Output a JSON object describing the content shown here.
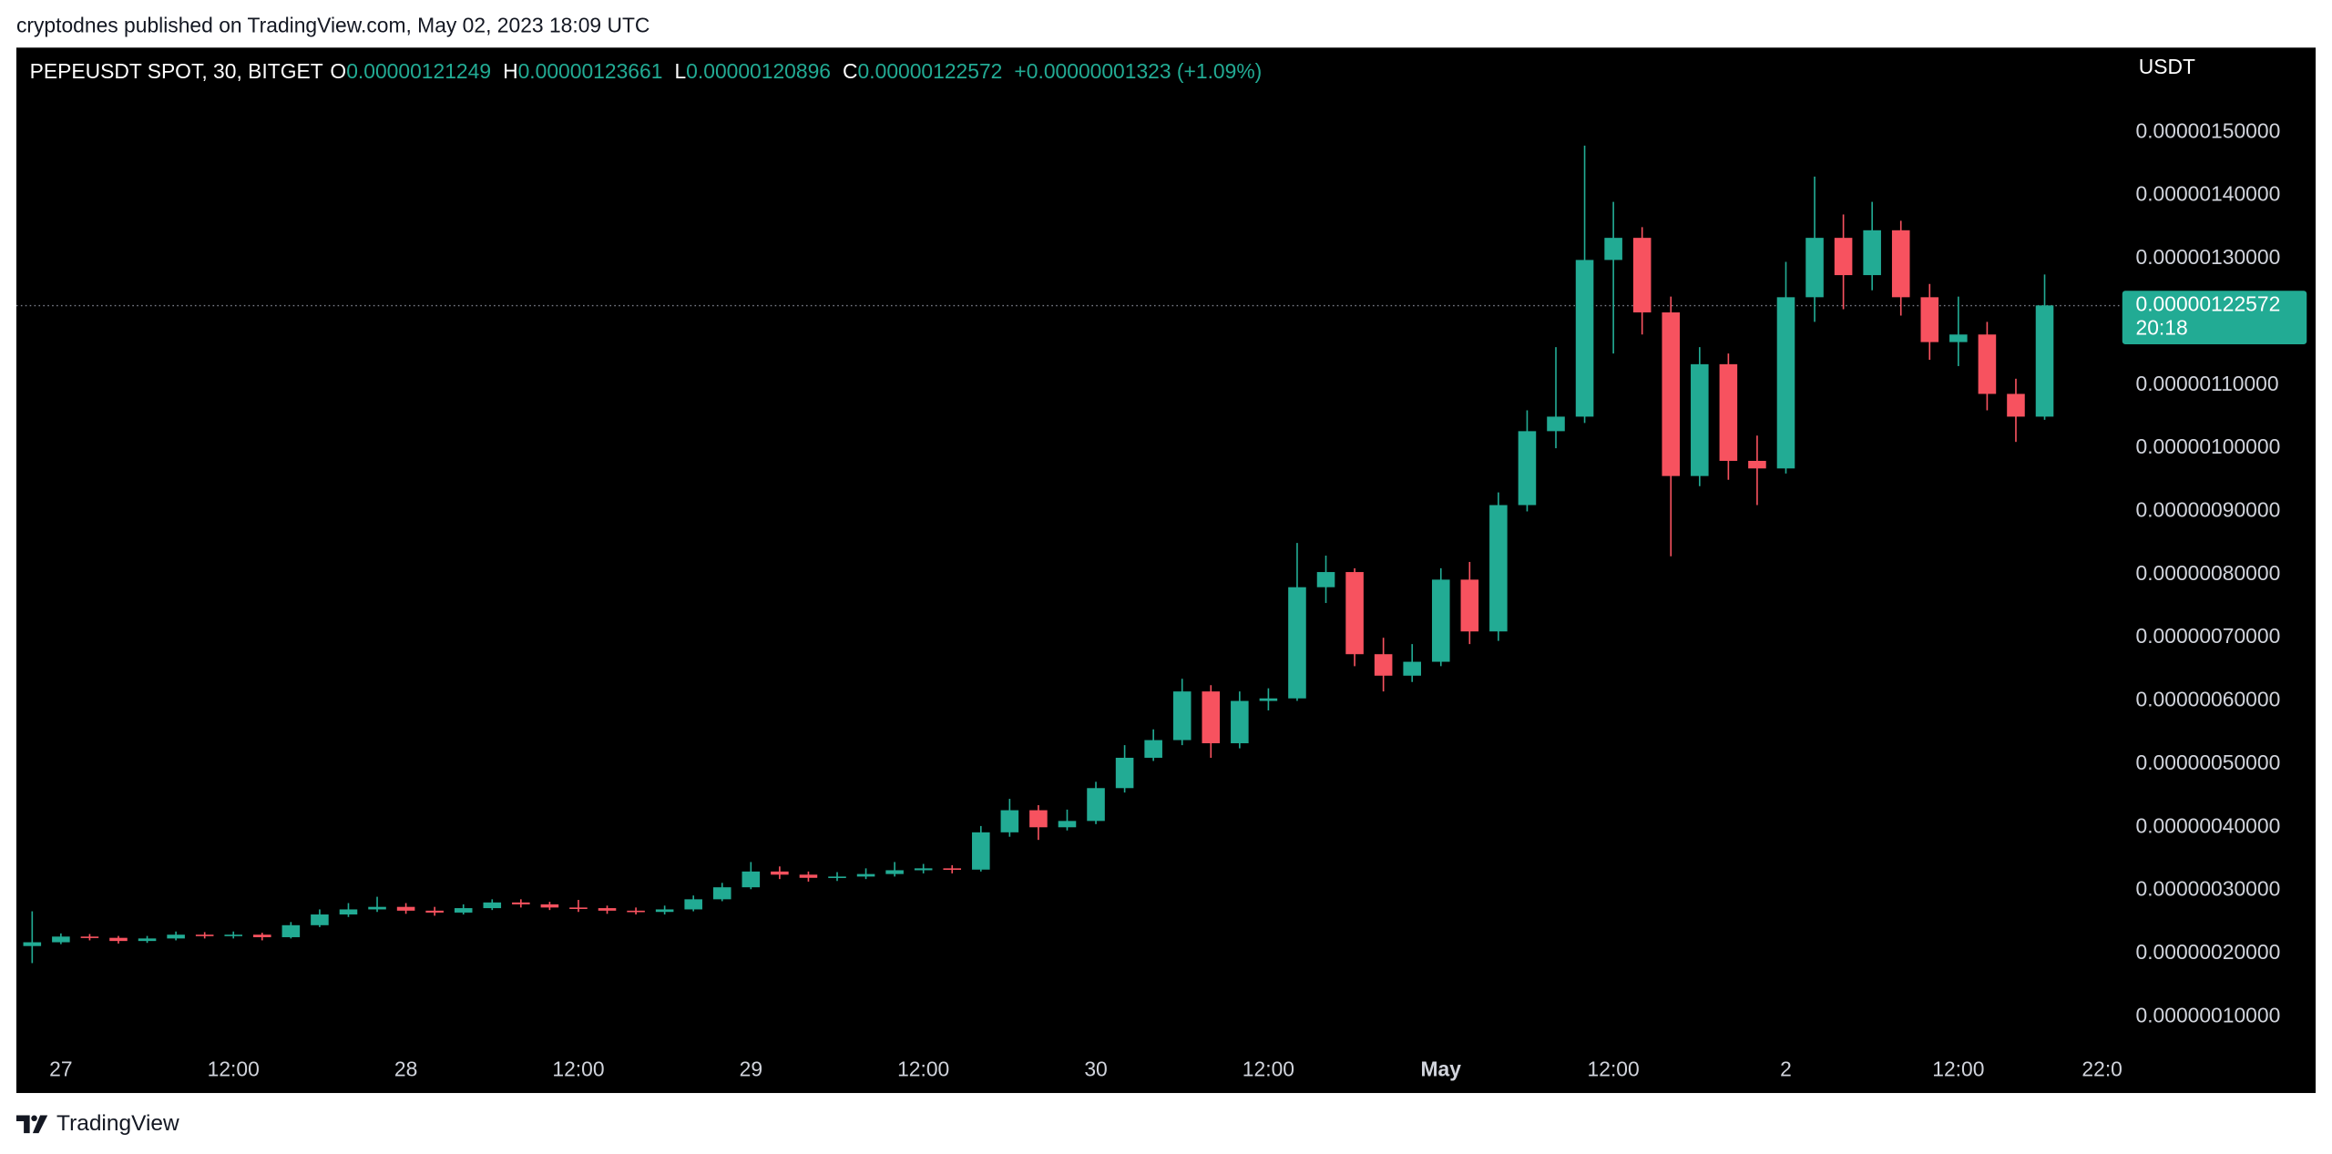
{
  "chart_data": {
    "type": "candlestick",
    "attribution": "cryptodnes published on TradingView.com, May 02, 2023 18:09 UTC",
    "brand": "TradingView",
    "symbol": "PEPEUSDT SPOT, 30, BITGET",
    "ohlc_header": [
      {
        "key": "O",
        "value": "0.00000121249"
      },
      {
        "key": "H",
        "value": "0.00000123661"
      },
      {
        "key": "L",
        "value": "0.00000120896"
      },
      {
        "key": "C",
        "value": "0.00000122572"
      }
    ],
    "change": "+0.00000001323 (+1.09%)",
    "currency": "USDT",
    "last_price": {
      "value": 1.22572e-06,
      "label": "0.00000122572"
    },
    "countdown": "20:18",
    "up_color": "#22ab94",
    "down_color": "#f7525f",
    "xlim": [
      -3.1,
      143.3
    ],
    "xticks": [
      {
        "value": 0,
        "label": "27"
      },
      {
        "value": 12,
        "label": "12:00"
      },
      {
        "value": 24,
        "label": "28"
      },
      {
        "value": 36,
        "label": "12:00"
      },
      {
        "value": 48,
        "label": "29"
      },
      {
        "value": 60,
        "label": "12:00"
      },
      {
        "value": 72,
        "label": "30"
      },
      {
        "value": 84,
        "label": "12:00"
      },
      {
        "value": 96,
        "label": "May"
      },
      {
        "value": 108,
        "label": "12:00"
      },
      {
        "value": 120,
        "label": "2"
      },
      {
        "value": 132,
        "label": "12:00"
      },
      {
        "value": 142,
        "label": "22:0"
      }
    ],
    "ylim": [
      5e-08,
      1.63e-06
    ],
    "yticks": [
      {
        "value": 1e-07,
        "label": "0.00000010000"
      },
      {
        "value": 2e-07,
        "label": "0.00000020000"
      },
      {
        "value": 3e-07,
        "label": "0.00000030000"
      },
      {
        "value": 4e-07,
        "label": "0.00000040000"
      },
      {
        "value": 5e-07,
        "label": "0.00000050000"
      },
      {
        "value": 6e-07,
        "label": "0.00000060000"
      },
      {
        "value": 7e-07,
        "label": "0.00000070000"
      },
      {
        "value": 8e-07,
        "label": "0.00000080000"
      },
      {
        "value": 9e-07,
        "label": "0.00000090000"
      },
      {
        "value": 1e-06,
        "label": "0.00000100000"
      },
      {
        "value": 1.1e-06,
        "label": "0.00000110000"
      },
      {
        "value": 1.3e-06,
        "label": "0.00000130000"
      },
      {
        "value": 1.4e-06,
        "label": "0.00000140000"
      },
      {
        "value": 1.5e-06,
        "label": "0.00000150000"
      }
    ],
    "x": [
      -2,
      0,
      2,
      4,
      6,
      8,
      10,
      12,
      14,
      16,
      18,
      20,
      22,
      24,
      26,
      28,
      30,
      32,
      34,
      36,
      38,
      40,
      42,
      44,
      46,
      48,
      50,
      52,
      54,
      56,
      58,
      60,
      62,
      64,
      66,
      68,
      70,
      72,
      74,
      76,
      78,
      80,
      82,
      84,
      86,
      88,
      90,
      92,
      94,
      96,
      98,
      100,
      102,
      104,
      106,
      108,
      110,
      112,
      114,
      116,
      118,
      120,
      122,
      124,
      126,
      128,
      130,
      132,
      134,
      136,
      138
    ],
    "open": [
      2.12e-07,
      2.18e-07,
      2.27e-07,
      2.25e-07,
      2.2e-07,
      2.24e-07,
      2.3e-07,
      2.28e-07,
      2.3e-07,
      2.26e-07,
      2.45e-07,
      2.62e-07,
      2.7e-07,
      2.74e-07,
      2.68e-07,
      2.65e-07,
      2.72e-07,
      2.81e-07,
      2.78e-07,
      2.73e-07,
      2.72e-07,
      2.68e-07,
      2.66e-07,
      2.7e-07,
      2.86e-07,
      3.05e-07,
      3.3e-07,
      3.25e-07,
      3.2e-07,
      3.22e-07,
      3.26e-07,
      3.32e-07,
      3.35e-07,
      3.33e-07,
      3.92e-07,
      4.27e-07,
      4e-07,
      4.1e-07,
      4.62e-07,
      5.1e-07,
      5.38e-07,
      6.15e-07,
      5.33e-07,
      6e-07,
      6.04e-07,
      7.8e-07,
      8.04e-07,
      6.74e-07,
      6.4e-07,
      6.62e-07,
      7.92e-07,
      7.1e-07,
      9.1e-07,
      1.027e-06,
      1.05e-06,
      1.298e-06,
      1.333e-06,
      1.215e-06,
      9.56e-07,
      1.133e-06,
      9.8e-07,
      9.68e-07,
      1.239e-06,
      1.333e-06,
      1.274e-06,
      1.345e-06,
      1.239e-06,
      1.168e-06,
      1.18e-06,
      1.086e-06,
      1.05e-06
    ],
    "high": [
      2.67e-07,
      2.32e-07,
      2.31e-07,
      2.28e-07,
      2.28e-07,
      2.35e-07,
      2.34e-07,
      2.35e-07,
      2.33e-07,
      2.5e-07,
      2.7e-07,
      2.8e-07,
      2.9e-07,
      2.8e-07,
      2.74e-07,
      2.78e-07,
      2.86e-07,
      2.86e-07,
      2.82e-07,
      2.85e-07,
      2.76e-07,
      2.73e-07,
      2.76e-07,
      2.92e-07,
      3.12e-07,
      3.45e-07,
      3.38e-07,
      3.3e-07,
      3.29e-07,
      3.35e-07,
      3.45e-07,
      3.42e-07,
      3.4e-07,
      4.02e-07,
      4.45e-07,
      4.35e-07,
      4.28e-07,
      4.72e-07,
      5.3e-07,
      5.55e-07,
      6.35e-07,
      6.25e-07,
      6.15e-07,
      6.2e-07,
      8.5e-07,
      8.3e-07,
      8.1e-07,
      7e-07,
      6.9e-07,
      8.1e-07,
      8.2e-07,
      9.3e-07,
      1.06e-06,
      1.16e-06,
      1.479e-06,
      1.39e-06,
      1.35e-06,
      1.24e-06,
      1.16e-06,
      1.15e-06,
      1.02e-06,
      1.295e-06,
      1.43e-06,
      1.37e-06,
      1.39e-06,
      1.36e-06,
      1.26e-06,
      1.24e-06,
      1.2e-06,
      1.11e-06,
      1.275e-06
    ],
    "low": [
      1.85e-07,
      2.15e-07,
      2.21e-07,
      2.16e-07,
      2.17e-07,
      2.21e-07,
      2.24e-07,
      2.24e-07,
      2.21e-07,
      2.24e-07,
      2.42e-07,
      2.58e-07,
      2.66e-07,
      2.63e-07,
      2.6e-07,
      2.62e-07,
      2.69e-07,
      2.73e-07,
      2.69e-07,
      2.66e-07,
      2.63e-07,
      2.62e-07,
      2.62e-07,
      2.67e-07,
      2.83e-07,
      3.02e-07,
      3.18e-07,
      3.14e-07,
      3.15e-07,
      3.18e-07,
      3.22e-07,
      3.27e-07,
      3.27e-07,
      3.3e-07,
      3.85e-07,
      3.8e-07,
      3.95e-07,
      4.05e-07,
      4.55e-07,
      5.05e-07,
      5.3e-07,
      5.1e-07,
      5.25e-07,
      5.85e-07,
      6e-07,
      7.55e-07,
      6.55e-07,
      6.15e-07,
      6.3e-07,
      6.55e-07,
      6.9e-07,
      6.95e-07,
      9e-07,
      1e-06,
      1.04e-06,
      1.15e-06,
      1.18e-06,
      8.29e-07,
      9.4e-07,
      9.5e-07,
      9.1e-07,
      9.6e-07,
      1.2e-06,
      1.22e-06,
      1.25e-06,
      1.21e-06,
      1.14e-06,
      1.13e-06,
      1.06e-06,
      1.01e-06,
      1.045e-06
    ],
    "close": [
      2.18e-07,
      2.27e-07,
      2.25e-07,
      2.2e-07,
      2.24e-07,
      2.3e-07,
      2.28e-07,
      2.3e-07,
      2.26e-07,
      2.45e-07,
      2.62e-07,
      2.7e-07,
      2.74e-07,
      2.68e-07,
      2.65e-07,
      2.72e-07,
      2.81e-07,
      2.78e-07,
      2.73e-07,
      2.72e-07,
      2.68e-07,
      2.66e-07,
      2.7e-07,
      2.86e-07,
      3.05e-07,
      3.3e-07,
      3.25e-07,
      3.2e-07,
      3.22e-07,
      3.26e-07,
      3.32e-07,
      3.35e-07,
      3.33e-07,
      3.92e-07,
      4.27e-07,
      4e-07,
      4.1e-07,
      4.62e-07,
      5.1e-07,
      5.38e-07,
      6.15e-07,
      5.33e-07,
      6e-07,
      6.04e-07,
      7.8e-07,
      8.04e-07,
      6.74e-07,
      6.4e-07,
      6.62e-07,
      7.92e-07,
      7.1e-07,
      9.1e-07,
      1.027e-06,
      1.05e-06,
      1.298e-06,
      1.333e-06,
      1.215e-06,
      9.56e-07,
      1.133e-06,
      9.8e-07,
      9.68e-07,
      1.239e-06,
      1.333e-06,
      1.274e-06,
      1.345e-06,
      1.239e-06,
      1.168e-06,
      1.18e-06,
      1.086e-06,
      1.05e-06,
      1.226e-06
    ]
  }
}
